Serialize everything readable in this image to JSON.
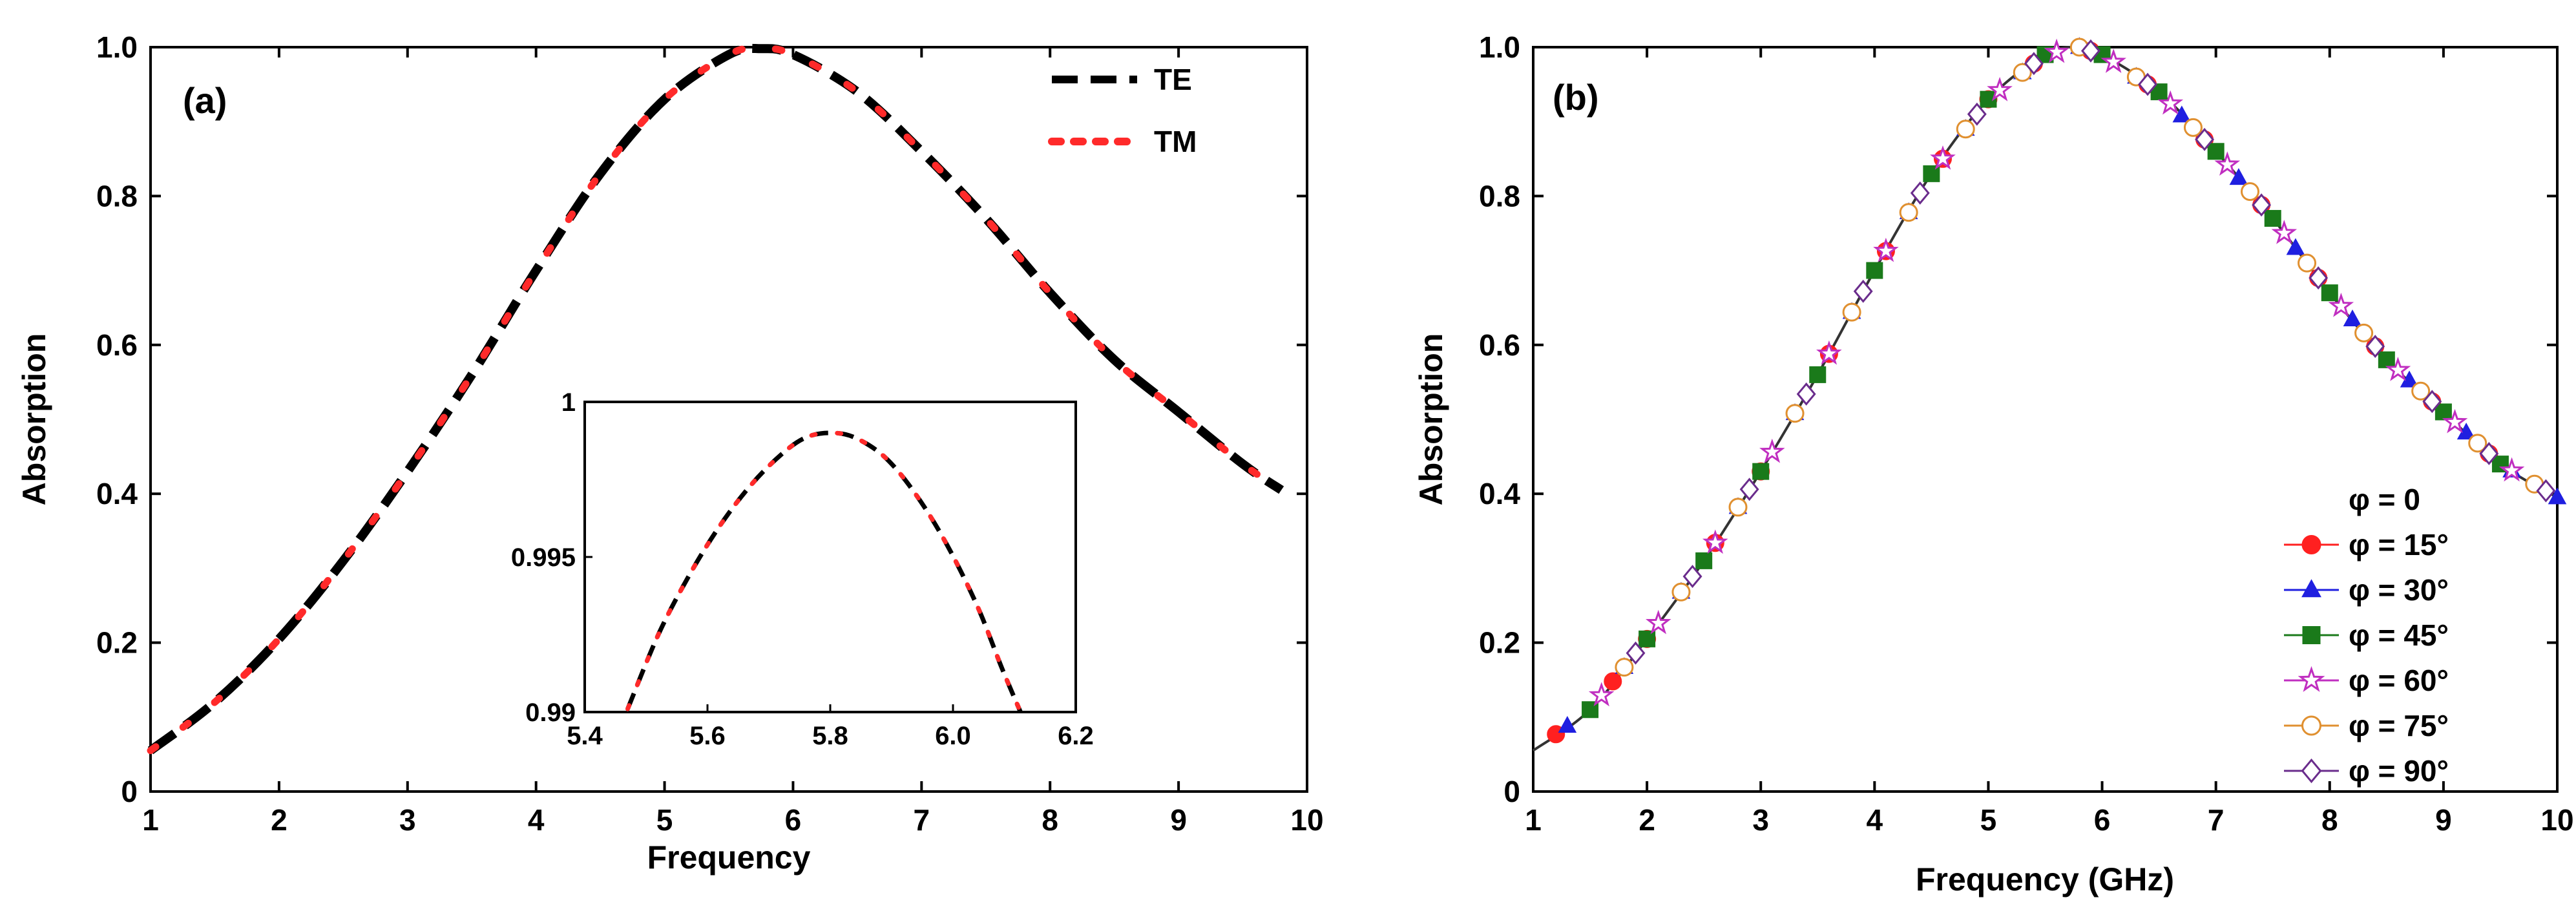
{
  "chart_data": [
    {
      "type": "line",
      "panel_label": "(a)",
      "xlabel": "Frequency",
      "ylabel": "Absorption",
      "xlim": [
        1,
        10
      ],
      "ylim": [
        0,
        1.0
      ],
      "x_ticks": [
        "1",
        "2",
        "3",
        "4",
        "5",
        "6",
        "7",
        "8",
        "9",
        "10"
      ],
      "y_ticks": [
        "0",
        "0.2",
        "0.4",
        "0.6",
        "0.8",
        "1.0"
      ],
      "legend_position": "top-right",
      "series": [
        {
          "name": "TE",
          "color": "#000000",
          "style": "dash",
          "x": [
            1.0,
            1.5,
            2.0,
            2.5,
            3.0,
            3.5,
            4.0,
            4.5,
            5.0,
            5.5,
            5.75,
            6.0,
            6.5,
            7.0,
            7.5,
            8.0,
            8.5,
            9.0,
            9.5,
            9.8
          ],
          "y": [
            0.055,
            0.12,
            0.205,
            0.31,
            0.43,
            0.56,
            0.7,
            0.83,
            0.93,
            0.99,
            0.998,
            0.99,
            0.94,
            0.86,
            0.77,
            0.67,
            0.58,
            0.51,
            0.44,
            0.405
          ]
        },
        {
          "name": "TM",
          "color": "#ff2a2a",
          "style": "dot",
          "x": [
            1.0,
            1.5,
            2.0,
            2.5,
            3.0,
            3.5,
            4.0,
            4.5,
            5.0,
            5.5,
            5.75,
            6.0,
            6.5,
            7.0,
            7.5,
            8.0,
            8.5,
            9.0,
            9.5,
            9.8
          ],
          "y": [
            0.055,
            0.12,
            0.205,
            0.31,
            0.43,
            0.56,
            0.7,
            0.83,
            0.93,
            0.99,
            0.998,
            0.99,
            0.94,
            0.86,
            0.77,
            0.67,
            0.58,
            0.51,
            0.44,
            0.405
          ]
        }
      ],
      "inset": {
        "xlim": [
          5.4,
          6.2
        ],
        "ylim": [
          0.99,
          1.0
        ],
        "x_ticks": [
          "5.4",
          "5.6",
          "5.8",
          "6.0",
          "6.2"
        ],
        "y_ticks": [
          "0.99",
          "0.995",
          "1"
        ],
        "series": [
          {
            "name": "TE",
            "color": "#000000",
            "style": "dash",
            "x": [
              5.47,
              5.52,
              5.57,
              5.62,
              5.67,
              5.72,
              5.76,
              5.8,
              5.84,
              5.89,
              5.94,
              5.99,
              6.04,
              6.08,
              6.11
            ],
            "y": [
              0.9901,
              0.9925,
              0.9944,
              0.996,
              0.9973,
              0.9983,
              0.99885,
              0.999,
              0.99885,
              0.9982,
              0.997,
              0.9954,
              0.9934,
              0.9914,
              0.99
            ]
          },
          {
            "name": "TM",
            "color": "#ff2a2a",
            "style": "dot",
            "x": [
              5.47,
              5.52,
              5.57,
              5.62,
              5.67,
              5.72,
              5.76,
              5.8,
              5.84,
              5.89,
              5.94,
              5.99,
              6.04,
              6.08,
              6.11
            ],
            "y": [
              0.9901,
              0.9925,
              0.9944,
              0.996,
              0.9973,
              0.9983,
              0.99885,
              0.999,
              0.99885,
              0.9982,
              0.997,
              0.9954,
              0.9934,
              0.9914,
              0.99
            ]
          }
        ]
      }
    },
    {
      "type": "line",
      "panel_label": "(b)",
      "xlabel": "Frequency (GHz)",
      "ylabel": "Absorption",
      "xlim": [
        1,
        10
      ],
      "ylim": [
        0,
        1.0
      ],
      "x_ticks": [
        "1",
        "2",
        "3",
        "4",
        "5",
        "6",
        "7",
        "8",
        "9",
        "10"
      ],
      "y_ticks": [
        "0",
        "0.2",
        "0.4",
        "0.6",
        "0.8",
        "1.0"
      ],
      "legend_position": "bottom-right",
      "curve": {
        "x": [
          1.0,
          1.5,
          2.0,
          2.5,
          3.0,
          3.5,
          4.0,
          4.5,
          5.0,
          5.5,
          5.8,
          6.0,
          6.5,
          7.0,
          7.5,
          8.0,
          8.5,
          9.0,
          9.5,
          10.0
        ],
        "y": [
          0.055,
          0.11,
          0.205,
          0.31,
          0.43,
          0.56,
          0.7,
          0.83,
          0.93,
          0.99,
          1.0,
          0.99,
          0.94,
          0.86,
          0.77,
          0.67,
          0.58,
          0.51,
          0.44,
          0.395
        ]
      },
      "series": [
        {
          "name": "φ = 0",
          "color": "#000000",
          "marker": "none",
          "marker_x": []
        },
        {
          "name": "φ = 15°",
          "color": "#ff2020",
          "marker": "circle",
          "marker_x": [
            1.2,
            1.7,
            2.0,
            2.6,
            3.0,
            3.6,
            4.1,
            4.6,
            5.0,
            5.4,
            5.9,
            6.4,
            6.9,
            7.4,
            7.9,
            8.4,
            8.9,
            9.4,
            9.8
          ]
        },
        {
          "name": "φ = 30°",
          "color": "#1f1fe0",
          "marker": "triangle",
          "marker_x": [
            1.3,
            1.8,
            2.3,
            2.8,
            3.3,
            3.8,
            4.3,
            4.8,
            5.3,
            5.8,
            6.3,
            6.7,
            7.2,
            7.7,
            8.2,
            8.7,
            9.2,
            9.6,
            10.0
          ]
        },
        {
          "name": "φ = 45°",
          "color": "#1a7a1a",
          "marker": "square",
          "marker_x": [
            1.5,
            2.0,
            2.5,
            3.0,
            3.5,
            4.0,
            4.5,
            5.0,
            5.5,
            6.0,
            6.5,
            7.0,
            7.5,
            8.0,
            8.5,
            9.0,
            9.5
          ]
        },
        {
          "name": "φ = 60°",
          "color": "#c02ec0",
          "marker": "star",
          "marker_x": [
            1.6,
            2.1,
            2.6,
            3.1,
            3.6,
            4.1,
            4.6,
            5.1,
            5.6,
            6.1,
            6.6,
            7.1,
            7.6,
            8.1,
            8.6,
            9.1,
            9.6
          ]
        },
        {
          "name": "φ = 75°",
          "color": "#e09030",
          "marker": "circle-open",
          "marker_x": [
            1.8,
            2.3,
            2.8,
            3.3,
            3.8,
            4.3,
            4.8,
            5.3,
            5.8,
            6.3,
            6.8,
            7.3,
            7.8,
            8.3,
            8.8,
            9.3,
            9.8
          ]
        },
        {
          "name": "φ = 90°",
          "color": "#6a2c8c",
          "marker": "diamond",
          "marker_x": [
            1.9,
            2.4,
            2.9,
            3.4,
            3.9,
            4.4,
            4.9,
            5.4,
            5.9,
            6.4,
            6.9,
            7.4,
            7.9,
            8.4,
            8.9,
            9.4,
            9.9
          ]
        }
      ]
    }
  ]
}
